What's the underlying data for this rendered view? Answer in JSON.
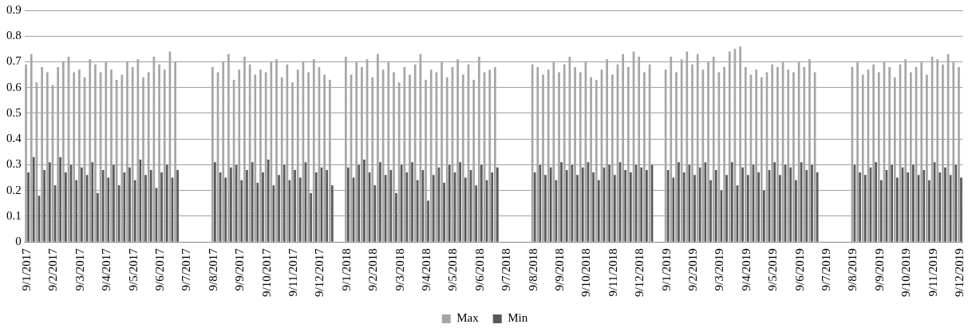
{
  "chart_data": {
    "type": "bar",
    "categories": [
      "9/1/2017",
      null,
      null,
      null,
      null,
      "9/2/2017",
      null,
      null,
      null,
      null,
      "9/3/2017",
      null,
      null,
      null,
      null,
      "9/4/2017",
      null,
      null,
      null,
      null,
      "9/5/2017",
      null,
      null,
      null,
      null,
      "9/6/2017",
      null,
      null,
      null,
      null,
      "9/7/2017",
      null,
      null,
      null,
      null,
      "9/8/2017",
      null,
      null,
      null,
      null,
      "9/9/2017",
      null,
      null,
      null,
      null,
      "9/10/2017",
      null,
      null,
      null,
      null,
      "9/11/2017",
      null,
      null,
      null,
      null,
      "9/12/2017",
      null,
      null,
      null,
      null,
      "9/1/2018",
      null,
      null,
      null,
      null,
      "9/2/2018",
      null,
      null,
      null,
      null,
      "9/3/2018",
      null,
      null,
      null,
      null,
      "9/4/2018",
      null,
      null,
      null,
      null,
      "9/5/2018",
      null,
      null,
      null,
      null,
      "9/6/2018",
      null,
      null,
      null,
      null,
      "9/7/2018",
      null,
      null,
      null,
      null,
      "9/8/2018",
      null,
      null,
      null,
      null,
      "9/9/2018",
      null,
      null,
      null,
      null,
      "9/10/2018",
      null,
      null,
      null,
      null,
      "9/11/2018",
      null,
      null,
      null,
      null,
      "9/12/2018",
      null,
      null,
      null,
      null,
      "9/1/2019",
      null,
      null,
      null,
      null,
      "9/2/2019",
      null,
      null,
      null,
      null,
      "9/3/2019",
      null,
      null,
      null,
      null,
      "9/4/2019",
      null,
      null,
      null,
      null,
      "9/5/2019",
      null,
      null,
      null,
      null,
      "9/6/2019",
      null,
      null,
      null,
      null,
      "9/7/2019",
      null,
      null,
      null,
      null,
      "9/8/2019",
      null,
      null,
      null,
      null,
      "9/9/2019",
      null,
      null,
      null,
      null,
      "9/10/2019",
      null,
      null,
      null,
      null,
      "9/11/2019",
      null,
      null,
      null,
      null,
      "9/12/2019"
    ],
    "series": [
      {
        "name": "Max",
        "color": "#a6a6a6",
        "values": [
          0.69,
          0.73,
          0.62,
          0.68,
          0.66,
          0.61,
          0.68,
          0.7,
          0.72,
          0.66,
          0.67,
          0.64,
          0.71,
          0.69,
          0.66,
          0.7,
          0.67,
          0.63,
          0.65,
          0.7,
          0.68,
          0.71,
          0.64,
          0.66,
          0.72,
          0.69,
          0.67,
          0.74,
          0.7,
          null,
          null,
          null,
          null,
          null,
          null,
          0.68,
          0.66,
          0.7,
          0.73,
          0.63,
          0.67,
          0.72,
          0.69,
          0.65,
          0.67,
          0.66,
          0.7,
          0.71,
          0.64,
          0.69,
          0.62,
          0.67,
          0.7,
          0.66,
          0.71,
          0.68,
          0.65,
          0.63,
          null,
          null,
          0.72,
          0.65,
          0.7,
          0.68,
          0.71,
          0.64,
          0.73,
          0.67,
          0.7,
          0.66,
          0.62,
          0.68,
          0.65,
          0.69,
          0.73,
          0.63,
          0.67,
          0.66,
          0.7,
          0.64,
          0.68,
          0.71,
          0.65,
          0.69,
          0.63,
          0.72,
          0.66,
          0.67,
          0.68,
          null,
          null,
          null,
          null,
          null,
          null,
          0.69,
          0.68,
          0.65,
          0.67,
          0.7,
          0.66,
          0.69,
          0.72,
          0.68,
          0.66,
          0.7,
          0.64,
          0.63,
          0.67,
          0.71,
          0.65,
          0.69,
          0.73,
          0.68,
          0.74,
          0.72,
          0.66,
          0.69,
          null,
          null,
          0.67,
          0.72,
          0.66,
          0.71,
          0.74,
          0.69,
          0.73,
          0.67,
          0.7,
          0.72,
          0.66,
          0.68,
          0.74,
          0.75,
          0.76,
          0.68,
          0.65,
          0.67,
          0.64,
          0.66,
          0.69,
          0.68,
          0.7,
          0.67,
          0.66,
          0.7,
          0.68,
          0.71,
          0.66,
          null,
          null,
          null,
          null,
          null,
          null,
          0.68,
          0.7,
          0.65,
          0.67,
          0.69,
          0.66,
          0.7,
          0.68,
          0.64,
          0.69,
          0.71,
          0.66,
          0.68,
          0.7,
          0.65,
          0.72,
          0.71,
          0.69,
          0.73,
          0.7,
          0.68
        ]
      },
      {
        "name": "Min",
        "color": "#595959",
        "values": [
          0.27,
          0.33,
          0.18,
          0.28,
          0.31,
          0.22,
          0.33,
          0.27,
          0.3,
          0.24,
          0.29,
          0.26,
          0.31,
          0.19,
          0.28,
          0.25,
          0.3,
          0.22,
          0.27,
          0.29,
          0.24,
          0.32,
          0.26,
          0.28,
          0.21,
          0.27,
          0.3,
          0.25,
          0.28,
          null,
          null,
          null,
          null,
          null,
          null,
          0.31,
          0.27,
          0.25,
          0.29,
          0.3,
          0.24,
          0.28,
          0.31,
          0.23,
          0.27,
          0.32,
          0.22,
          0.26,
          0.3,
          0.24,
          0.28,
          0.25,
          0.31,
          0.19,
          0.27,
          0.29,
          0.28,
          0.22,
          null,
          null,
          0.29,
          0.25,
          0.3,
          0.32,
          0.27,
          0.22,
          0.31,
          0.26,
          0.28,
          0.19,
          0.3,
          0.27,
          0.31,
          0.24,
          0.28,
          0.16,
          0.26,
          0.29,
          0.23,
          0.3,
          0.27,
          0.31,
          0.25,
          0.28,
          0.22,
          0.3,
          0.24,
          0.27,
          0.29,
          null,
          null,
          null,
          null,
          null,
          null,
          0.27,
          0.3,
          0.26,
          0.29,
          0.24,
          0.31,
          0.28,
          0.3,
          0.26,
          0.29,
          0.31,
          0.27,
          0.24,
          0.29,
          0.3,
          0.26,
          0.31,
          0.28,
          0.27,
          0.3,
          0.29,
          0.28,
          0.3,
          null,
          null,
          0.28,
          0.25,
          0.31,
          0.27,
          0.3,
          0.26,
          0.29,
          0.31,
          0.24,
          0.28,
          0.2,
          0.26,
          0.31,
          0.22,
          0.29,
          0.26,
          0.3,
          0.27,
          0.2,
          0.28,
          0.31,
          0.26,
          0.3,
          0.29,
          0.24,
          0.31,
          0.28,
          0.3,
          0.27,
          null,
          null,
          null,
          null,
          null,
          null,
          0.3,
          0.27,
          0.26,
          0.29,
          0.31,
          0.24,
          0.28,
          0.3,
          0.25,
          0.29,
          0.27,
          0.3,
          0.26,
          0.28,
          0.24,
          0.31,
          0.27,
          0.29,
          0.26,
          0.3,
          0.25
        ]
      }
    ],
    "ylim": [
      0,
      0.9
    ],
    "yticks": [
      0,
      0.1,
      0.2,
      0.3,
      0.4,
      0.5,
      0.6,
      0.7,
      0.8,
      0.9
    ],
    "grid": "y",
    "legend": "bottom"
  }
}
